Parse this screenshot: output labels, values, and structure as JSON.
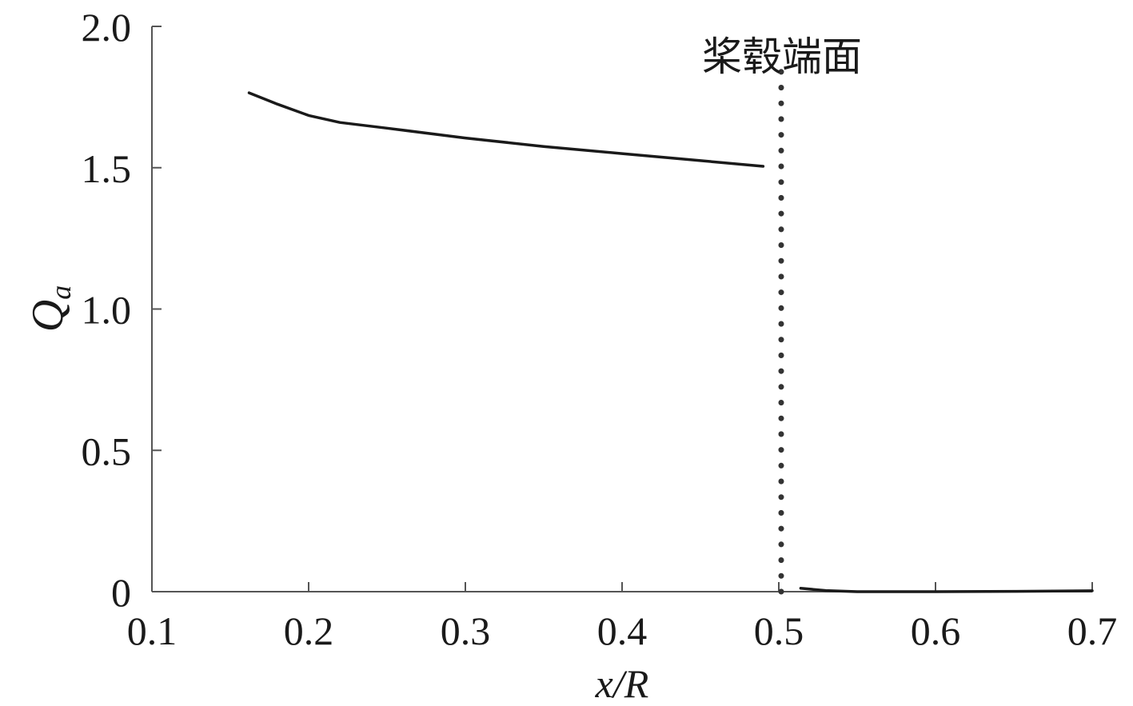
{
  "chart_data": {
    "type": "line",
    "xlabel": "x/R",
    "ylabel": "Q",
    "ylabel_sub": "a",
    "xlim": [
      0.1,
      0.7
    ],
    "ylim": [
      0,
      2.0
    ],
    "x_ticks": [
      0.1,
      0.2,
      0.3,
      0.4,
      0.5,
      0.6,
      0.7
    ],
    "x_tick_labels": [
      "0.1",
      "0.2",
      "0.3",
      "0.4",
      "0.5",
      "0.6",
      "0.7"
    ],
    "y_ticks": [
      0,
      0.5,
      1.0,
      1.5,
      2.0
    ],
    "y_tick_labels": [
      "0",
      "0.5",
      "1.0",
      "1.5",
      "2.0"
    ],
    "grid": false,
    "series": [
      {
        "segment": "before",
        "color": "#1a1a1a",
        "x": [
          0.162,
          0.18,
          0.2,
          0.22,
          0.25,
          0.3,
          0.35,
          0.4,
          0.45,
          0.49
        ],
        "y": [
          1.765,
          1.725,
          1.685,
          1.66,
          1.64,
          1.605,
          1.575,
          1.55,
          1.525,
          1.505
        ]
      },
      {
        "segment": "after",
        "color": "#1a1a1a",
        "x": [
          0.514,
          0.53,
          0.55,
          0.6,
          0.65,
          0.7
        ],
        "y": [
          0.012,
          0.004,
          0.0,
          0.0,
          0.001,
          0.003
        ]
      }
    ],
    "annotation": {
      "text": "桨毂端面",
      "x": 0.5,
      "style": "dotted-vertical-line"
    }
  }
}
